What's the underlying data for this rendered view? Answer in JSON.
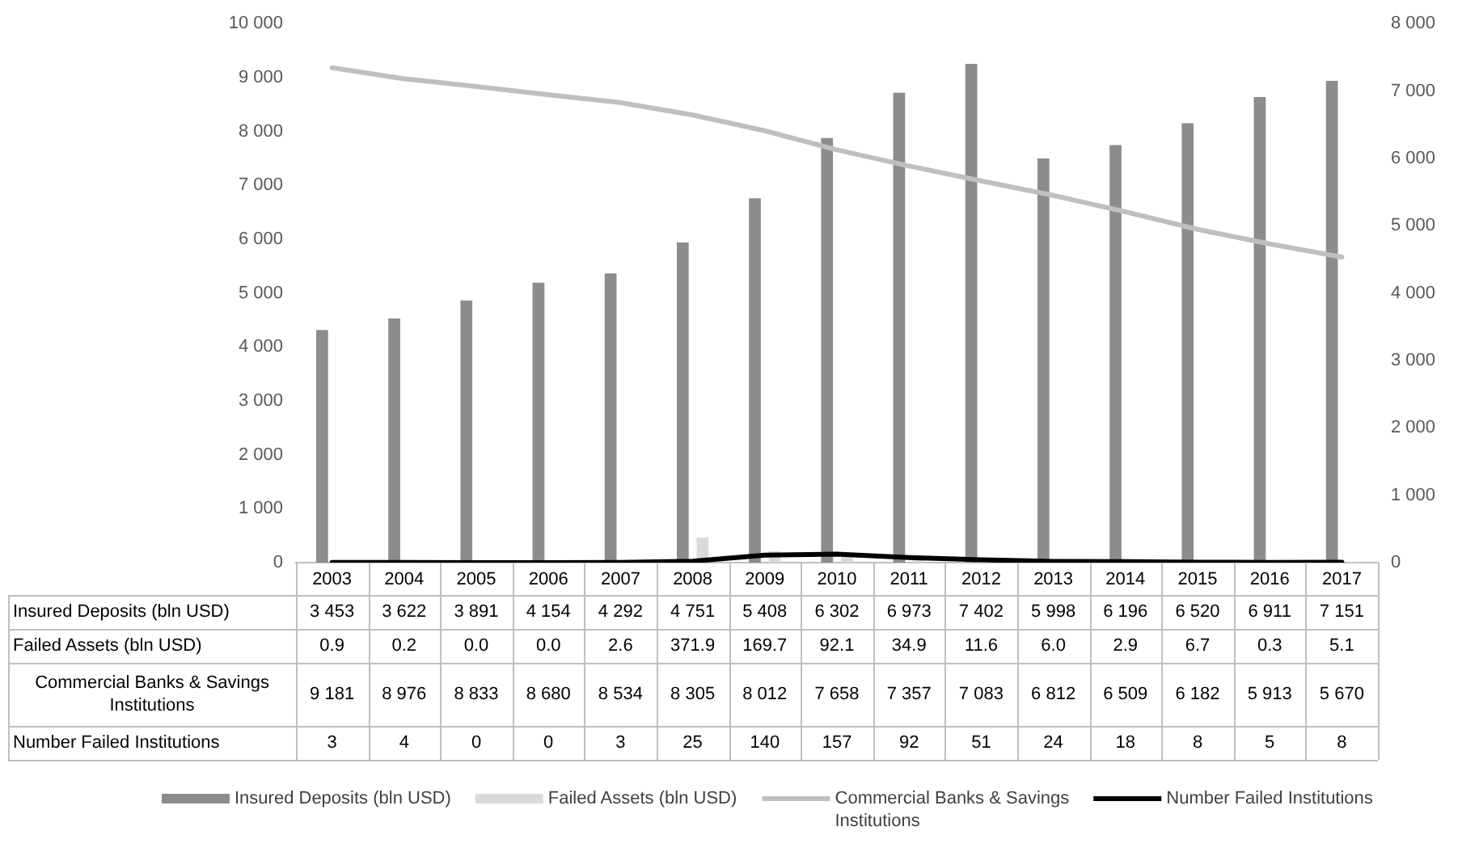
{
  "chart_data": {
    "type": "bar",
    "categories": [
      "2003",
      "2004",
      "2005",
      "2006",
      "2007",
      "2008",
      "2009",
      "2010",
      "2011",
      "2012",
      "2013",
      "2014",
      "2015",
      "2016",
      "2017"
    ],
    "series": [
      {
        "name": "Insured Deposits (bln USD)",
        "axis": "y2",
        "color": "#8c8c8c",
        "values": [
          3453,
          3622,
          3891,
          4154,
          4292,
          4751,
          5408,
          6302,
          6973,
          7402,
          5998,
          6196,
          6520,
          6911,
          7151
        ],
        "value_labels": [
          "3 453",
          "3 622",
          "3 891",
          "4 154",
          "4 292",
          "4 751",
          "5 408",
          "6 302",
          "6 973",
          "7 402",
          "5 998",
          "6 196",
          "6 520",
          "6 911",
          "7 151"
        ]
      },
      {
        "name": "Failed Assets (bln USD)",
        "axis": "y2",
        "color": "#d9d9d9",
        "values": [
          0.9,
          0.2,
          0.0,
          0.0,
          2.6,
          371.9,
          169.7,
          92.1,
          34.9,
          11.6,
          6.0,
          2.9,
          6.7,
          0.3,
          5.1
        ],
        "value_labels": [
          "0.9",
          "0.2",
          "0.0",
          "0.0",
          "2.6",
          "371.9",
          "169.7",
          "92.1",
          "34.9",
          "11.6",
          "6.0",
          "2.9",
          "6.7",
          "0.3",
          "5.1"
        ]
      },
      {
        "name": "Commercial Banks & Savings Institutions",
        "type": "line",
        "color": "#bfbfbf",
        "values": [
          9181,
          8976,
          8833,
          8680,
          8534,
          8305,
          8012,
          7658,
          7357,
          7083,
          6812,
          6509,
          6182,
          5913,
          5670
        ],
        "value_labels": [
          "9 181",
          "8 976",
          "8 833",
          "8 680",
          "8 534",
          "8 305",
          "8 012",
          "7 658",
          "7 357",
          "7 083",
          "6 812",
          "6 509",
          "6 182",
          "5 913",
          "5 670"
        ]
      },
      {
        "name": "Number Failed Institutions",
        "type": "line",
        "color": "#000000",
        "values": [
          3,
          4,
          0,
          0,
          3,
          25,
          140,
          157,
          92,
          51,
          24,
          18,
          8,
          5,
          8
        ],
        "value_labels": [
          "3",
          "4",
          "0",
          "0",
          "3",
          "25",
          "140",
          "157",
          "92",
          "51",
          "24",
          "18",
          "8",
          "5",
          "8"
        ]
      }
    ],
    "ylim": [
      0,
      10000
    ],
    "yticks": [
      0,
      {
        "value": 1000,
        "label": "1 000"
      },
      {
        "value": 2000,
        "label": "2 000"
      },
      {
        "value": 3000,
        "label": "3 000"
      },
      {
        "value": 4000,
        "label": "4 000"
      },
      {
        "value": 5000,
        "label": "5 000"
      },
      {
        "value": 6000,
        "label": "6 000"
      },
      {
        "value": 7000,
        "label": "7 000"
      },
      {
        "value": 8000,
        "label": "8 000"
      },
      {
        "value": 9000,
        "label": "9 000"
      },
      {
        "value": 10000,
        "label": "10 000"
      }
    ],
    "y2lim": [
      0,
      8000
    ],
    "y2ticks": [
      0,
      {
        "value": 1000,
        "label": "1 000"
      },
      {
        "value": 2000,
        "label": "2 000"
      },
      {
        "value": 3000,
        "label": "3 000"
      },
      {
        "value": 4000,
        "label": "4 000"
      },
      {
        "value": 5000,
        "label": "5 000"
      },
      {
        "value": 6000,
        "label": "6 000"
      },
      {
        "value": 7000,
        "label": "7 000"
      },
      {
        "value": 8000,
        "label": "8 000"
      }
    ],
    "grid": false,
    "legend": "bottom",
    "marker": "none",
    "line_style": "solid"
  }
}
